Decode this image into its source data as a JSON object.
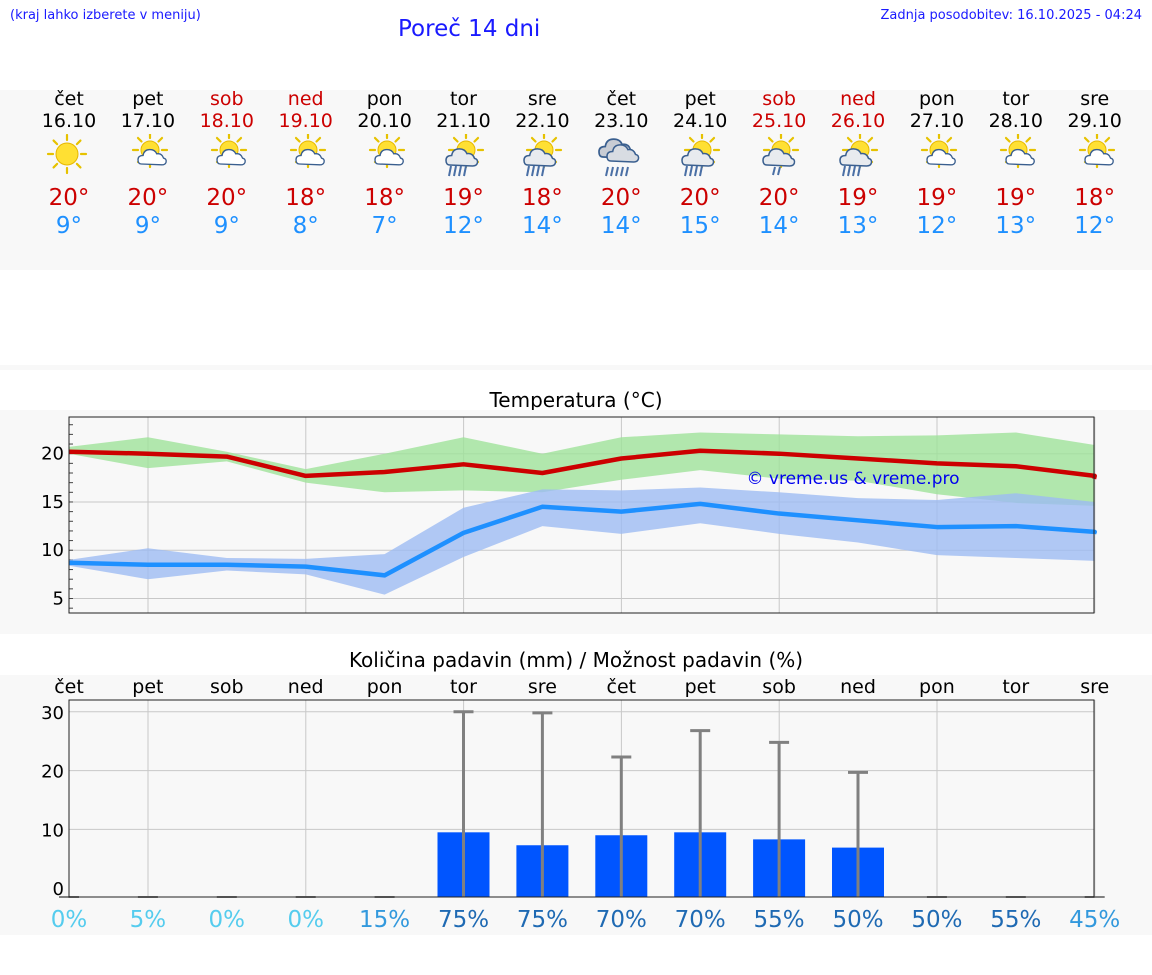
{
  "header": {
    "menu_hint": "(kraj lahko izberete v meniju)",
    "title": "Poreč 14 dni",
    "updated": "Zadnja posodobitev: 16.10.2025 - 04:24"
  },
  "colors": {
    "link": "#1a1aff",
    "max_temp": "#cc0000",
    "min_temp": "#1e90ff",
    "bars": "#0055ff"
  },
  "days": [
    {
      "name": "čet",
      "date": "16.10",
      "weekend": false,
      "icon": "sun-icon",
      "max": "20°",
      "min": "9°"
    },
    {
      "name": "pet",
      "date": "17.10",
      "weekend": false,
      "icon": "sun-cloud-icon",
      "max": "20°",
      "min": "9°"
    },
    {
      "name": "sob",
      "date": "18.10",
      "weekend": true,
      "icon": "sun-cloud-icon",
      "max": "20°",
      "min": "9°"
    },
    {
      "name": "ned",
      "date": "19.10",
      "weekend": true,
      "icon": "sun-cloud-icon",
      "max": "18°",
      "min": "8°"
    },
    {
      "name": "pon",
      "date": "20.10",
      "weekend": false,
      "icon": "sun-cloud-icon",
      "max": "18°",
      "min": "7°"
    },
    {
      "name": "tor",
      "date": "21.10",
      "weekend": false,
      "icon": "sun-cloud-rain-icon",
      "max": "19°",
      "min": "12°"
    },
    {
      "name": "sre",
      "date": "22.10",
      "weekend": false,
      "icon": "sun-cloud-rain-icon",
      "max": "18°",
      "min": "14°"
    },
    {
      "name": "čet",
      "date": "23.10",
      "weekend": false,
      "icon": "rain-cloud-icon",
      "max": "20°",
      "min": "14°"
    },
    {
      "name": "pet",
      "date": "24.10",
      "weekend": false,
      "icon": "sun-cloud-rain-icon",
      "max": "20°",
      "min": "15°"
    },
    {
      "name": "sob",
      "date": "25.10",
      "weekend": true,
      "icon": "sun-cloud-drizzle-icon",
      "max": "20°",
      "min": "14°"
    },
    {
      "name": "ned",
      "date": "26.10",
      "weekend": true,
      "icon": "sun-cloud-rain-icon",
      "max": "19°",
      "min": "13°"
    },
    {
      "name": "pon",
      "date": "27.10",
      "weekend": false,
      "icon": "sun-cloud-icon",
      "max": "19°",
      "min": "12°"
    },
    {
      "name": "tor",
      "date": "28.10",
      "weekend": false,
      "icon": "sun-cloud-icon",
      "max": "19°",
      "min": "13°"
    },
    {
      "name": "sre",
      "date": "29.10",
      "weekend": false,
      "icon": "sun-cloud-icon",
      "max": "18°",
      "min": "12°"
    }
  ],
  "chart_data": [
    {
      "type": "line",
      "title": "Temperatura (°C)",
      "watermark": "© vreme.us & vreme.pro",
      "ylim": [
        3.5,
        23.8
      ],
      "yticks": [
        5,
        10,
        15,
        20
      ],
      "series": [
        {
          "name": "max",
          "values": [
            20.2,
            20.0,
            19.7,
            17.7,
            18.1,
            18.9,
            18.0,
            19.5,
            20.3,
            20.0,
            19.5,
            19.0,
            18.7,
            17.7
          ],
          "band_low": [
            20.0,
            18.5,
            19.2,
            17.0,
            16.0,
            16.2,
            16.0,
            17.3,
            18.3,
            17.4,
            17.2,
            15.8,
            14.9,
            14.6
          ],
          "band_high": [
            20.7,
            21.7,
            20.2,
            18.4,
            20.0,
            21.7,
            20.0,
            21.7,
            22.2,
            22.0,
            21.8,
            21.9,
            22.2,
            20.9
          ]
        },
        {
          "name": "min",
          "values": [
            8.7,
            8.5,
            8.5,
            8.3,
            7.4,
            11.8,
            14.5,
            14.0,
            14.8,
            13.8,
            13.1,
            12.4,
            12.5,
            11.9
          ],
          "band_low": [
            8.4,
            7.0,
            7.9,
            7.5,
            5.4,
            9.3,
            12.5,
            11.7,
            12.8,
            11.7,
            10.8,
            9.5,
            9.2,
            8.9
          ],
          "band_high": [
            9.0,
            10.2,
            9.2,
            9.1,
            9.6,
            14.4,
            16.3,
            16.2,
            16.5,
            16.0,
            15.4,
            15.2,
            15.9,
            15.0
          ]
        }
      ]
    },
    {
      "type": "bar",
      "title": "Količina padavin (mm) / Možnost padavin (%)",
      "categories": [
        "čet",
        "pet",
        "sob",
        "ned",
        "pon",
        "tor",
        "sre",
        "čet",
        "pet",
        "sob",
        "ned",
        "pon",
        "tor",
        "sre"
      ],
      "ylim": [
        -1.5,
        32
      ],
      "yticks": [
        0,
        10,
        20,
        30
      ],
      "values": [
        0,
        0,
        0,
        0,
        0,
        9.5,
        7.3,
        9,
        9.5,
        8.3,
        6.9,
        0,
        0,
        0
      ],
      "max_values": [
        0,
        0,
        0,
        0,
        0,
        30,
        29.8,
        22.3,
        26.8,
        24.8,
        19.7,
        0,
        0,
        0
      ],
      "probability": [
        "0%",
        "5%",
        "0%",
        "0%",
        "15%",
        "75%",
        "75%",
        "70%",
        "70%",
        "55%",
        "50%",
        "50%",
        "55%",
        "45%"
      ],
      "probability_colors": [
        "#55ccee",
        "#55ccee",
        "#55ccee",
        "#55ccee",
        "#3399dd",
        "#1f6ab3",
        "#1f6ab3",
        "#1f6ab3",
        "#1f6ab3",
        "#1f6ab3",
        "#1f6ab3",
        "#1f6ab3",
        "#1f6ab3",
        "#3399dd"
      ]
    }
  ]
}
